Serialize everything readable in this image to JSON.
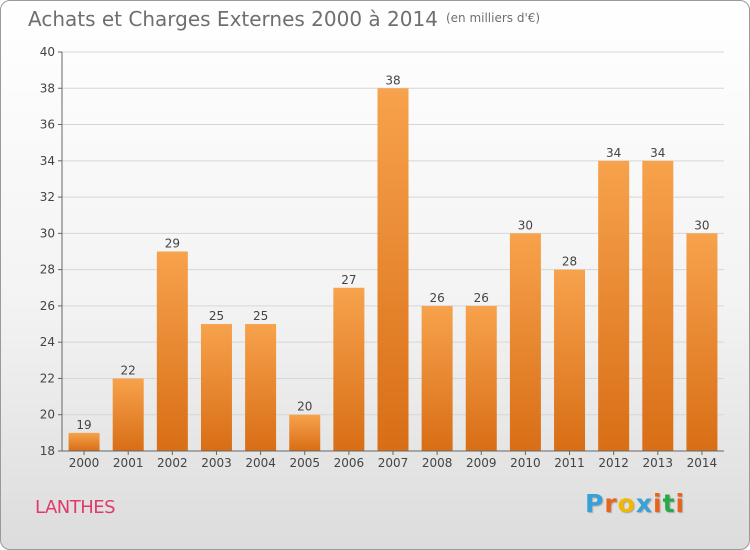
{
  "header": {
    "title": "Achats et Charges Externes 2000 à 2014",
    "unit": "(en milliers d'€)"
  },
  "footer": {
    "town": "LANTHES",
    "logo_text": "Proxiti",
    "logo_colors": [
      "#3aa0d8",
      "#e8641e",
      "#f0b800",
      "#3aa0d8",
      "#e8641e",
      "#2aa84a",
      "#e8641e"
    ]
  },
  "colors": {
    "bar_top": "#f7a24c",
    "bar_bottom": "#d86e16",
    "axis": "#666666",
    "grid": "#d6d6d6",
    "label": "#444444"
  },
  "chart_data": {
    "type": "bar",
    "title": "Achats et Charges Externes 2000 à 2014",
    "subtitle": "(en milliers d'€)",
    "xlabel": "",
    "ylabel": "",
    "categories": [
      "2000",
      "2001",
      "2002",
      "2003",
      "2004",
      "2005",
      "2006",
      "2007",
      "2008",
      "2009",
      "2010",
      "2011",
      "2012",
      "2013",
      "2014"
    ],
    "values": [
      19,
      22,
      29,
      25,
      25,
      20,
      27,
      38,
      26,
      26,
      30,
      28,
      34,
      34,
      30
    ],
    "ylim": [
      18,
      40
    ],
    "yticks": [
      18,
      20,
      22,
      24,
      26,
      28,
      30,
      32,
      34,
      36,
      38,
      40
    ],
    "grid": true,
    "data_labels": true
  }
}
